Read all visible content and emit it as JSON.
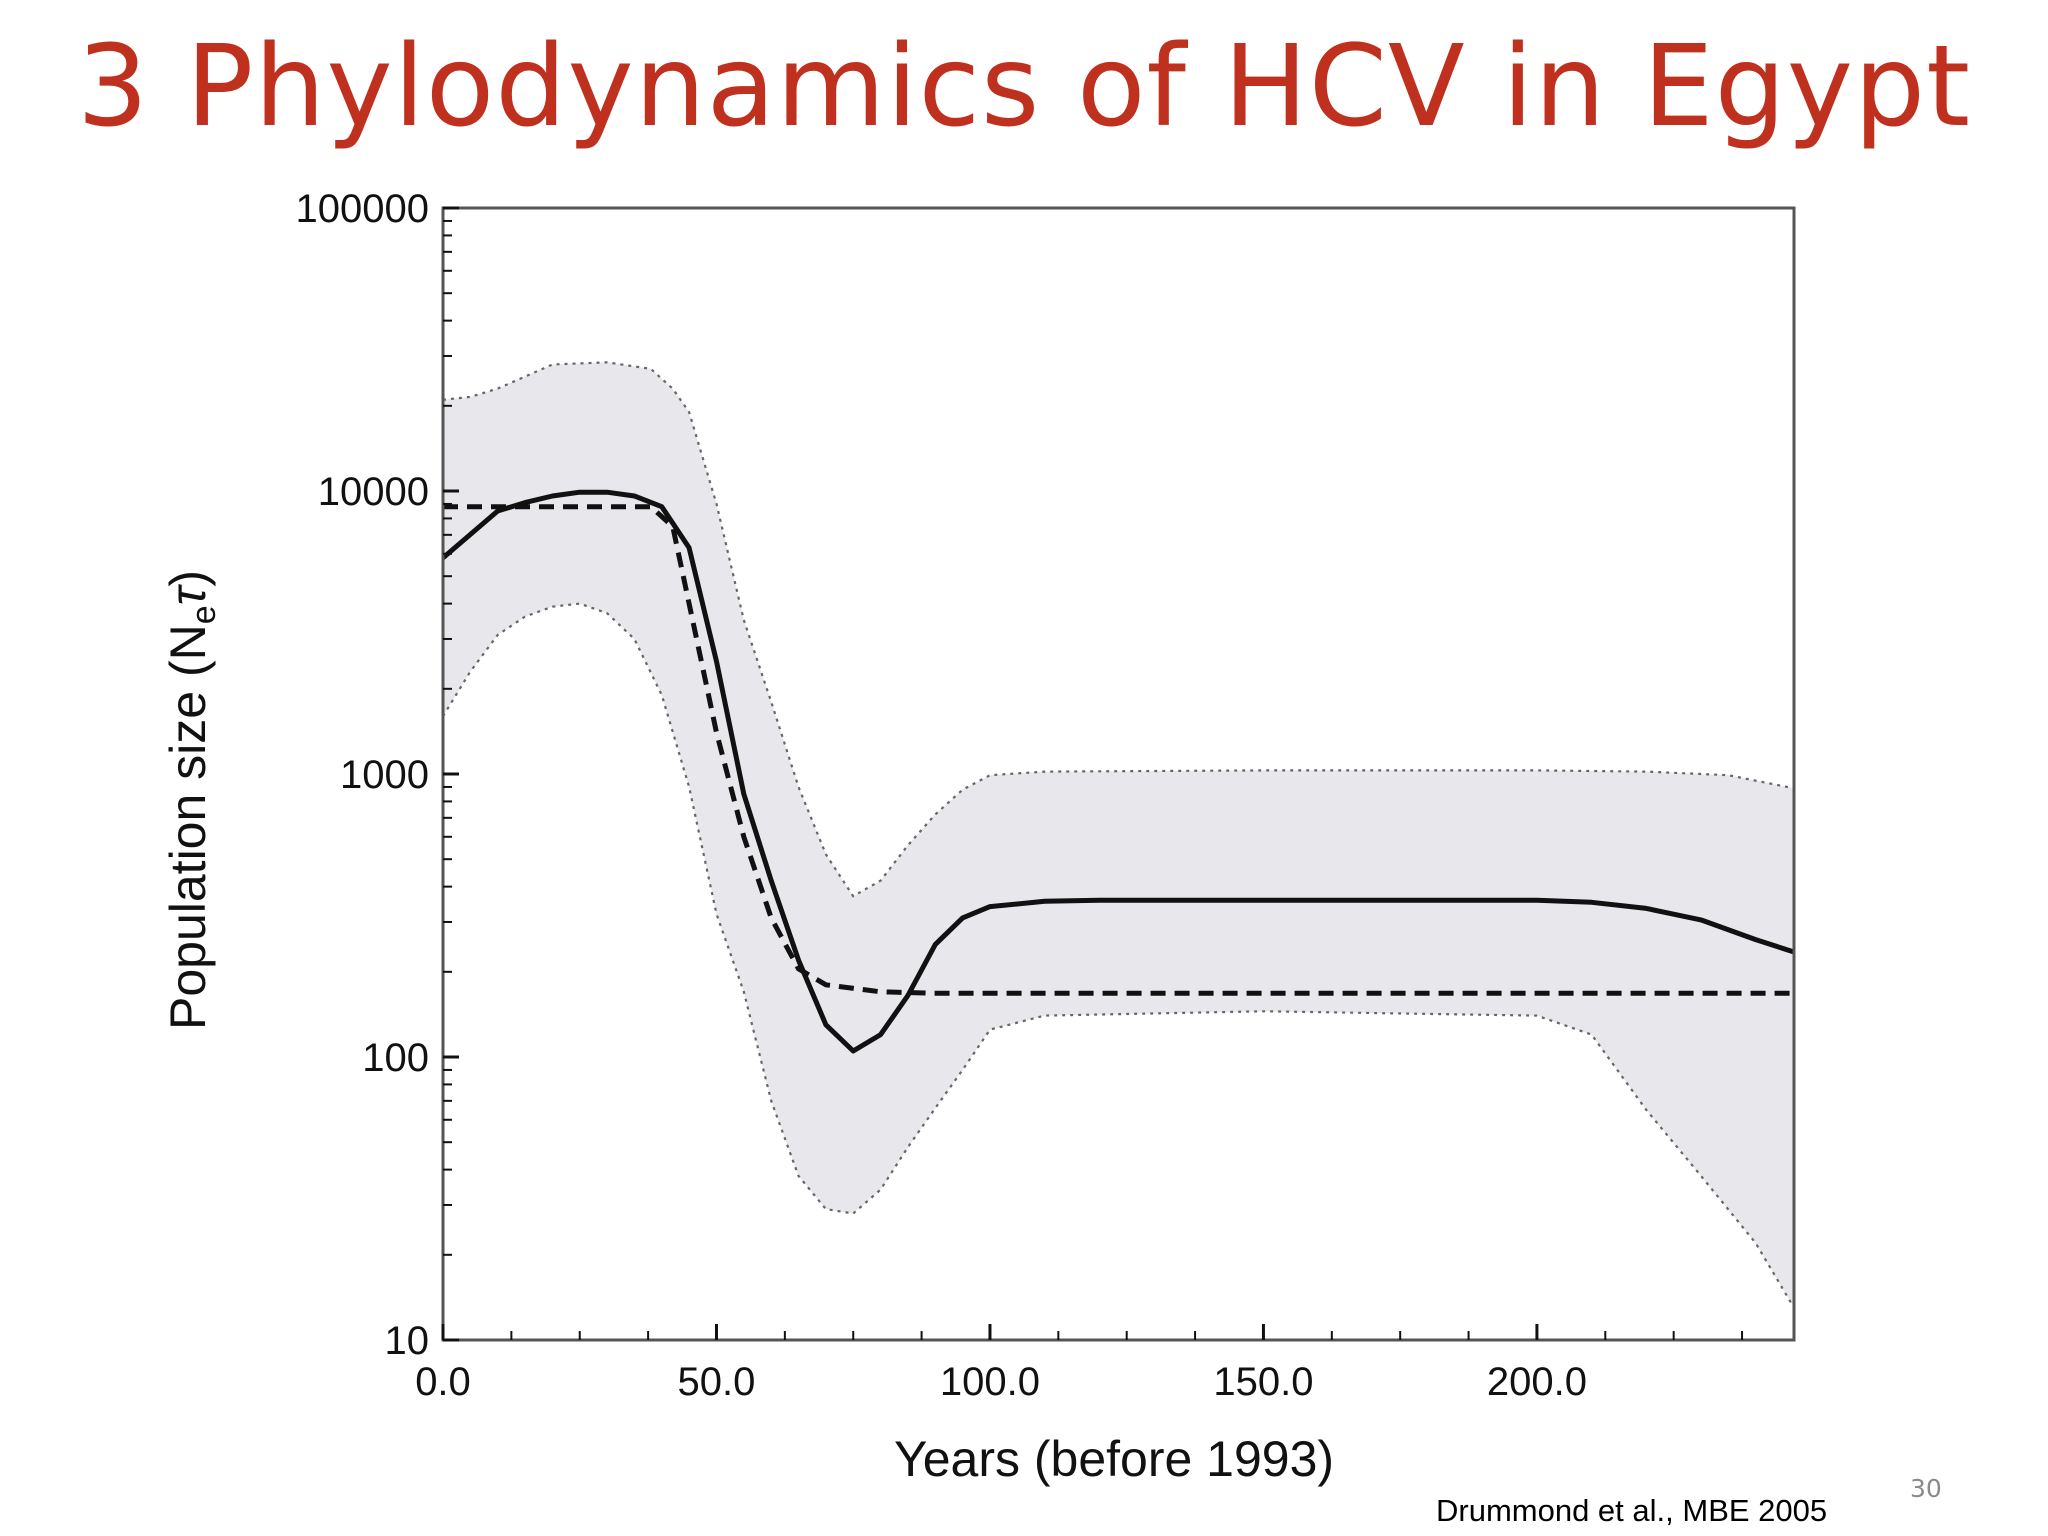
{
  "slide": {
    "title": "3 Phylodynamics of HCV in Egypt",
    "title_color": "#c0301e",
    "citation": "Drummond et al., MBE 2005",
    "page_number": "30"
  },
  "chart_data": {
    "type": "line",
    "title": "",
    "xlabel": "Years (before 1993)",
    "ylabel_main": "Population size (N",
    "ylabel_sub": "e",
    "ylabel_greek": "τ",
    "ylabel_close": ")",
    "xlim": [
      0,
      247
    ],
    "ylim": [
      10,
      100000
    ],
    "yscale": "log",
    "x_ticks": [
      0,
      50,
      100,
      150,
      200
    ],
    "x_tick_labels": [
      "0.0",
      "50.0",
      "100.0",
      "150.0",
      "200.0"
    ],
    "y_ticks": [
      10,
      100,
      1000,
      10000,
      100000
    ],
    "y_tick_labels": [
      "10",
      "100",
      "1000",
      "10000",
      "100000"
    ],
    "grid": false,
    "band_color": "#e8e7eb",
    "series": [
      {
        "role": "median",
        "style": "solid",
        "x": [
          0,
          10,
          15,
          20,
          25,
          30,
          35,
          40,
          45,
          50,
          55,
          60,
          65,
          70,
          75,
          80,
          85,
          90,
          95,
          100,
          110,
          120,
          150,
          200,
          210,
          220,
          230,
          240,
          247
        ],
        "y": [
          5800,
          8500,
          9100,
          9600,
          9900,
          9900,
          9600,
          8800,
          6300,
          2500,
          850,
          420,
          220,
          130,
          105,
          120,
          165,
          250,
          310,
          340,
          355,
          358,
          358,
          358,
          352,
          335,
          305,
          260,
          235
        ]
      },
      {
        "role": "true-value",
        "style": "dashed",
        "x": [
          0,
          10,
          20,
          30,
          38,
          42,
          45,
          50,
          55,
          60,
          65,
          70,
          80,
          90,
          100,
          150,
          200,
          247
        ],
        "y": [
          8800,
          8800,
          8800,
          8800,
          8800,
          7500,
          4000,
          1400,
          600,
          310,
          205,
          180,
          170,
          168,
          168,
          168,
          168,
          168
        ]
      },
      {
        "role": "upper-95-hpd",
        "style": "dotted",
        "x": [
          0,
          5,
          10,
          20,
          30,
          38,
          42,
          45,
          50,
          55,
          60,
          65,
          70,
          75,
          80,
          85,
          90,
          95,
          100,
          110,
          150,
          200,
          220,
          235,
          247
        ],
        "y": [
          21000,
          21500,
          23000,
          28000,
          28500,
          27000,
          23000,
          19000,
          9000,
          3500,
          1800,
          900,
          520,
          370,
          420,
          560,
          720,
          880,
          990,
          1020,
          1030,
          1030,
          1020,
          990,
          890
        ]
      },
      {
        "role": "lower-95-hpd",
        "style": "dotted",
        "x": [
          0,
          5,
          10,
          15,
          20,
          25,
          30,
          35,
          40,
          45,
          50,
          55,
          60,
          65,
          70,
          75,
          80,
          85,
          90,
          95,
          100,
          110,
          150,
          200,
          210,
          220,
          230,
          240,
          247
        ],
        "y": [
          1600,
          2300,
          3100,
          3600,
          3900,
          4000,
          3700,
          3000,
          1900,
          900,
          320,
          170,
          70,
          38,
          29,
          28,
          34,
          48,
          66,
          90,
          125,
          140,
          145,
          140,
          120,
          65,
          38,
          22,
          13
        ]
      }
    ]
  }
}
